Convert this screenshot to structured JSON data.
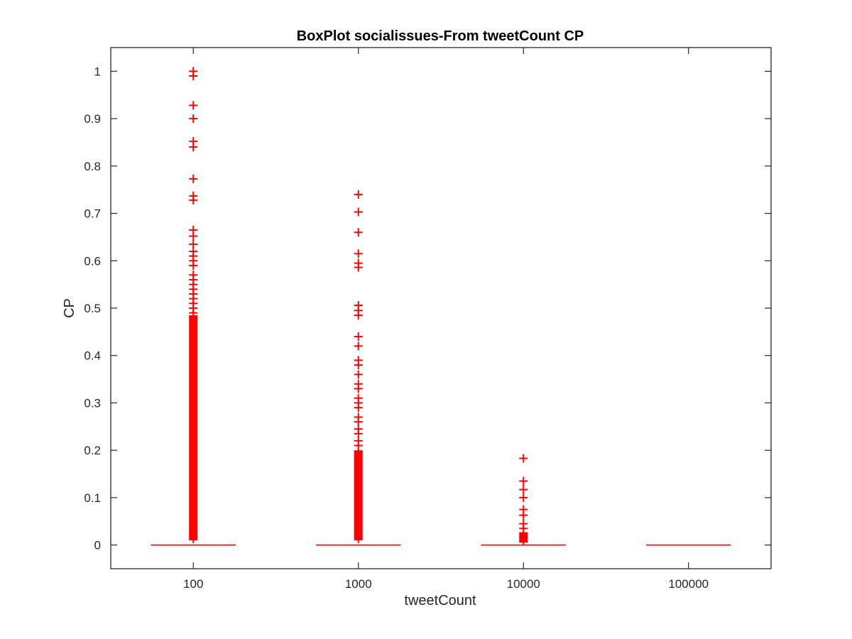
{
  "chart_data": {
    "type": "box",
    "title": "BoxPlot socialissues-From tweetCount CP",
    "xlabel": "tweetCount",
    "ylabel": "CP",
    "categories": [
      "100",
      "1000",
      "10000",
      "100000"
    ],
    "ylim": [
      -0.05,
      1.05
    ],
    "yticks": [
      0,
      0.1,
      0.2,
      0.3,
      0.4,
      0.5,
      0.6,
      0.7,
      0.8,
      0.9,
      1
    ],
    "ytick_labels": [
      "0",
      "0.1",
      "0.2",
      "0.3",
      "0.4",
      "0.5",
      "0.6",
      "0.7",
      "0.8",
      "0.9",
      "1"
    ],
    "grid": false,
    "series": [
      {
        "category": "100",
        "median": 0,
        "q1": 0,
        "q3": 0,
        "whisker_low": 0,
        "whisker_high": 0,
        "dense_outlier_range": [
          0.01,
          0.485
        ],
        "outliers": [
          1.0,
          0.99,
          0.928,
          0.9,
          0.852,
          0.84,
          0.773,
          0.737,
          0.728,
          0.665,
          0.652,
          0.635,
          0.62,
          0.61,
          0.6,
          0.59,
          0.57,
          0.56,
          0.55,
          0.54,
          0.53,
          0.52,
          0.51,
          0.5,
          0.49
        ]
      },
      {
        "category": "1000",
        "median": 0,
        "q1": 0,
        "q3": 0,
        "whisker_low": 0,
        "whisker_high": 0,
        "dense_outlier_range": [
          0.01,
          0.2
        ],
        "outliers": [
          0.74,
          0.703,
          0.66,
          0.615,
          0.595,
          0.586,
          0.506,
          0.495,
          0.485,
          0.44,
          0.42,
          0.39,
          0.38,
          0.36,
          0.34,
          0.33,
          0.31,
          0.3,
          0.29,
          0.27,
          0.26,
          0.245,
          0.235,
          0.22,
          0.21
        ]
      },
      {
        "category": "10000",
        "median": 0,
        "q1": 0,
        "q3": 0,
        "whisker_low": 0,
        "whisker_high": 0,
        "dense_outlier_range": [
          0.005,
          0.027
        ],
        "outliers": [
          0.183,
          0.135,
          0.117,
          0.1,
          0.075,
          0.063,
          0.045,
          0.035
        ]
      },
      {
        "category": "100000",
        "median": 0,
        "q1": 0,
        "q3": 0,
        "whisker_low": 0,
        "whisker_high": 0,
        "dense_outlier_range": [],
        "outliers": []
      }
    ],
    "colors": {
      "box": "#ff0000",
      "outlier": "#ff0000",
      "axis": "#262626"
    }
  }
}
